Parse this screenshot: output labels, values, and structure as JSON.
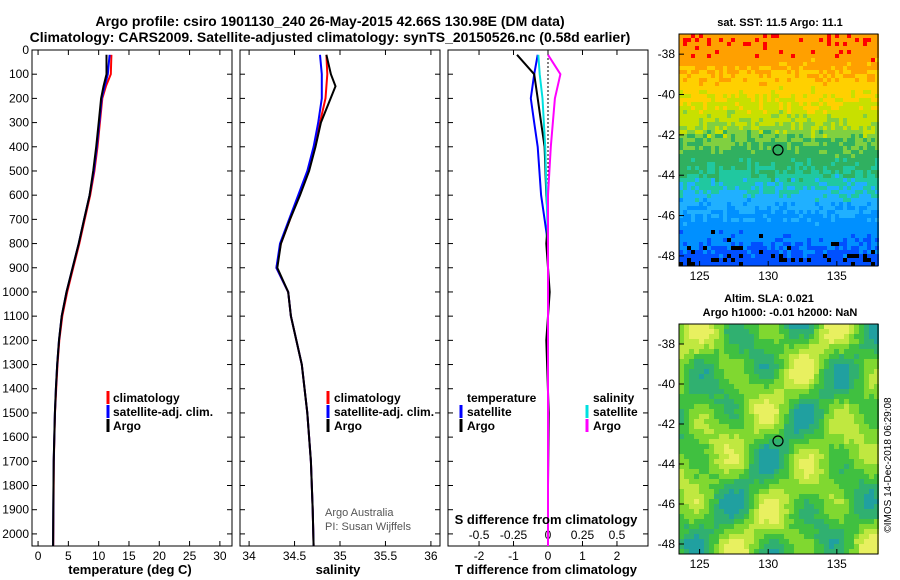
{
  "header": {
    "title_line1": "Argo profile: csiro 1901130_240 26-May-2015 42.66S 130.98E (DM data)",
    "title_line2": "Climatology: CARS2009. Satellite-adjusted climatology: synTS_20150526.nc (0.58d earlier)"
  },
  "colors": {
    "climatology": "#ff0000",
    "satellite": "#0000ff",
    "argo": "#000000",
    "sal_satellite": "#00e0e0",
    "sal_argo": "#ff00ff"
  },
  "chart_data": [
    {
      "type": "line",
      "name": "temperature-profile",
      "xlabel": "temperature (deg C)",
      "ylabel": "",
      "xlim": [
        -1,
        32
      ],
      "ylim": [
        2050,
        0
      ],
      "xticks": [
        "0",
        "5",
        "10",
        "15",
        "20",
        "25",
        "30"
      ],
      "yticks": [
        "0",
        "100",
        "200",
        "300",
        "400",
        "500",
        "600",
        "700",
        "800",
        "900",
        "1000",
        "1100",
        "1200",
        "1300",
        "1400",
        "1500",
        "1600",
        "1700",
        "1800",
        "1900",
        "2000"
      ],
      "legend": [
        "climatology",
        "satellite-adj. clim.",
        "Argo"
      ],
      "series": [
        {
          "name": "climatology",
          "x": [
            12.1,
            12.0,
            11.2,
            10.6,
            10.2,
            9.8,
            9.3,
            8.6,
            7.7,
            6.8,
            5.8,
            4.8,
            4.0,
            3.5,
            3.2,
            3.0,
            2.8,
            2.7,
            2.6,
            2.55,
            2.5
          ],
          "y": [
            20,
            100,
            150,
            200,
            300,
            400,
            500,
            600,
            700,
            800,
            900,
            1000,
            1100,
            1200,
            1300,
            1400,
            1500,
            1600,
            1700,
            1900,
            2050
          ]
        },
        {
          "name": "satellite",
          "x": [
            11.8,
            11.5,
            11.0,
            10.5,
            10.1,
            9.7,
            9.2,
            8.5,
            7.6,
            6.7,
            5.7,
            4.7,
            3.9,
            3.45,
            3.15,
            2.95,
            2.78,
            2.68,
            2.58,
            2.52,
            2.48
          ],
          "y": [
            20,
            100,
            150,
            200,
            300,
            400,
            500,
            600,
            700,
            800,
            900,
            1000,
            1100,
            1200,
            1300,
            1400,
            1500,
            1600,
            1700,
            1900,
            2050
          ]
        },
        {
          "name": "Argo",
          "x": [
            11.3,
            11.3,
            10.8,
            10.4,
            10.0,
            9.6,
            9.1,
            8.5,
            7.6,
            6.7,
            5.7,
            4.7,
            3.9,
            3.45,
            3.15,
            2.95,
            2.78,
            2.68,
            2.58,
            2.52,
            2.48
          ],
          "y": [
            20,
            100,
            150,
            200,
            300,
            400,
            500,
            600,
            700,
            800,
            900,
            1000,
            1100,
            1200,
            1300,
            1400,
            1500,
            1600,
            1700,
            1900,
            2050
          ]
        }
      ]
    },
    {
      "type": "line",
      "name": "salinity-profile",
      "xlabel": "salinity",
      "xlim": [
        33.9,
        36.1
      ],
      "ylim": [
        2050,
        0
      ],
      "xticks": [
        "34",
        "34.5",
        "35",
        "35.5",
        "36"
      ],
      "legend": [
        "climatology",
        "satellite-adj. clim.",
        "Argo"
      ],
      "credit_line1": "Argo Australia",
      "credit_line2": "PI: Susan Wijffels",
      "series": [
        {
          "name": "climatology",
          "x": [
            34.85,
            34.86,
            34.84,
            34.78,
            34.72,
            34.65,
            34.55,
            34.45,
            34.35,
            34.3,
            34.43,
            34.46,
            34.58,
            34.64,
            34.68,
            34.7,
            34.71
          ],
          "y": [
            20,
            100,
            200,
            300,
            400,
            500,
            600,
            700,
            800,
            900,
            1000,
            1100,
            1300,
            1500,
            1700,
            1900,
            2050
          ]
        },
        {
          "name": "satellite",
          "x": [
            34.78,
            34.8,
            34.8,
            34.76,
            34.71,
            34.64,
            34.54,
            34.44,
            34.34,
            34.3,
            34.43,
            34.46,
            34.58,
            34.64,
            34.68,
            34.7,
            34.71
          ],
          "y": [
            20,
            100,
            200,
            300,
            400,
            500,
            600,
            700,
            800,
            900,
            1000,
            1100,
            1300,
            1500,
            1700,
            1900,
            2050
          ]
        },
        {
          "name": "Argo",
          "x": [
            34.85,
            34.9,
            34.95,
            34.79,
            34.73,
            34.66,
            34.56,
            34.45,
            34.35,
            34.31,
            34.43,
            34.46,
            34.58,
            34.64,
            34.68,
            34.7,
            34.71
          ],
          "y": [
            20,
            100,
            150,
            300,
            400,
            500,
            600,
            700,
            800,
            900,
            1000,
            1100,
            1300,
            1500,
            1700,
            1900,
            2050
          ]
        }
      ]
    },
    {
      "type": "line",
      "name": "difference-profile",
      "xlabel": "T difference from climatology",
      "second_xlabel": "S difference from climatology",
      "xlim": [
        -2.9,
        2.9
      ],
      "ylim": [
        2050,
        0
      ],
      "xticks": [
        "-2",
        "-1",
        "0",
        "1",
        "2"
      ],
      "s_ticks": [
        "-0.5",
        "-0.25",
        "0",
        "0.25",
        "0.5"
      ],
      "legend_temperature_title": "temperature",
      "legend_salinity_title": "salinity",
      "legend_temperature": [
        "satellite",
        "Argo"
      ],
      "legend_salinity": [
        "satellite",
        "Argo"
      ],
      "series": [
        {
          "name": "T satellite",
          "x": [
            -0.3,
            -0.4,
            -0.5,
            -0.4,
            -0.3,
            -0.2,
            -0.1,
            0.0,
            0.0,
            0.0,
            0.0,
            0.0,
            0.0
          ],
          "y": [
            20,
            100,
            200,
            300,
            400,
            600,
            700,
            800,
            1000,
            1200,
            1500,
            1800,
            2050
          ]
        },
        {
          "name": "T Argo",
          "x": [
            -0.9,
            -0.4,
            -0.3,
            -0.2,
            -0.1,
            -0.05,
            0.0,
            -0.05,
            0.05,
            -0.05,
            0.02,
            0.0,
            0.0
          ],
          "y": [
            20,
            100,
            200,
            300,
            400,
            600,
            700,
            800,
            1000,
            1200,
            1500,
            1800,
            2050
          ]
        },
        {
          "name": "S satellite",
          "x": [
            -0.07,
            -0.06,
            -0.04,
            -0.02,
            -0.01,
            0.0,
            0.0,
            0.0,
            0.0,
            0.0
          ],
          "y": [
            20,
            100,
            200,
            400,
            600,
            800,
            1000,
            1400,
            1800,
            2050
          ]
        },
        {
          "name": "S Argo",
          "x": [
            0.0,
            0.09,
            0.05,
            0.02,
            0.0,
            0.0,
            0.0,
            0.0,
            0.0,
            0.0
          ],
          "y": [
            20,
            100,
            200,
            400,
            600,
            800,
            1000,
            1400,
            1800,
            2050
          ]
        }
      ]
    },
    {
      "type": "heatmap",
      "name": "sst-map",
      "title": "sat. SST: 11.5 Argo: 11.1",
      "xticks": [
        "125",
        "130",
        "135"
      ],
      "yticks": [
        "-38",
        "-40",
        "-42",
        "-44",
        "-46",
        "-48"
      ],
      "marker": {
        "lon": 130.98,
        "lat": -42.66
      }
    },
    {
      "type": "heatmap",
      "name": "sla-map",
      "title_line1": "Altim. SLA: 0.021",
      "title_line2": "Argo h1000: -0.01 h2000: NaN",
      "xticks": [
        "125",
        "130",
        "135"
      ],
      "yticks": [
        "-38",
        "-40",
        "-42",
        "-44",
        "-46",
        "-48"
      ],
      "marker": {
        "lon": 130.98,
        "lat": -42.66
      }
    }
  ],
  "footer": {
    "stamp": "©IMOS 14-Dec-2018 06:29:08"
  }
}
